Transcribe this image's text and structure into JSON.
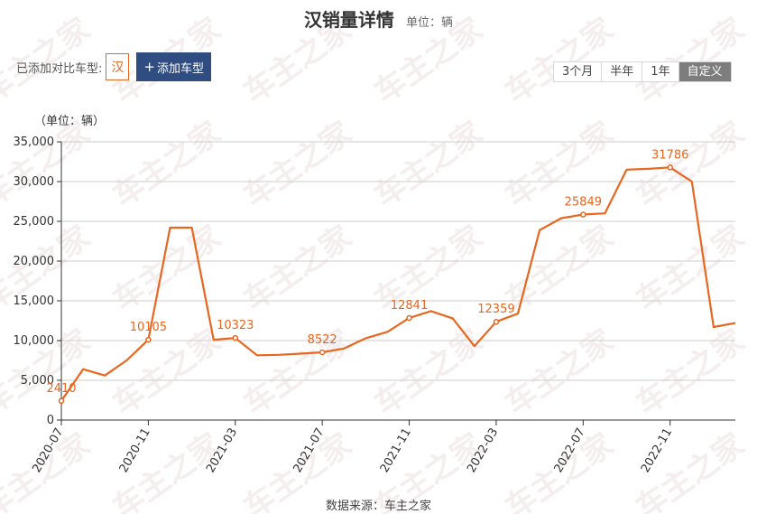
{
  "header": {
    "title": "汉销量详情",
    "unit": "单位：辆"
  },
  "compare": {
    "label": "已添加对比车型:",
    "models": [
      "汉"
    ],
    "add_button": "添加车型"
  },
  "range_tabs": [
    {
      "label": "3个月",
      "active": false
    },
    {
      "label": "半年",
      "active": false
    },
    {
      "label": "1年",
      "active": false
    },
    {
      "label": "自定义",
      "active": true
    }
  ],
  "watermark": "车主之家",
  "chart_data": {
    "type": "line",
    "unit_label": "（单位：辆）",
    "ylim": [
      0,
      35000
    ],
    "yticks": [
      0,
      5000,
      10000,
      15000,
      20000,
      25000,
      30000,
      35000
    ],
    "ytick_labels": [
      "0",
      "5,000",
      "10,000",
      "15,000",
      "20,000",
      "25,000",
      "30,000",
      "35,000"
    ],
    "xtick_labels": [
      "2020-07",
      "2020-11",
      "2021-03",
      "2021-07",
      "2021-11",
      "2022-03",
      "2022-07",
      "2022-11"
    ],
    "x": [
      "2020-07",
      "2020-08",
      "2020-09",
      "2020-10",
      "2020-11",
      "2020-12",
      "2021-01",
      "2021-02",
      "2021-03",
      "2021-04",
      "2021-05",
      "2021-06",
      "2021-07",
      "2021-08",
      "2021-09",
      "2021-10",
      "2021-11",
      "2021-12",
      "2022-01",
      "2022-02",
      "2022-03",
      "2022-04",
      "2022-05",
      "2022-06",
      "2022-07",
      "2022-08",
      "2022-09",
      "2022-10",
      "2022-11",
      "2022-12",
      "2023-01",
      "2023-02"
    ],
    "series": [
      {
        "color": "#e8661f",
        "values": [
          2410,
          6400,
          5600,
          7500,
          10105,
          24200,
          24200,
          10100,
          10323,
          8150,
          8200,
          8350,
          8522,
          9000,
          10300,
          11100,
          12841,
          13700,
          12800,
          9300,
          12359,
          13400,
          23900,
          25400,
          25849,
          26000,
          31500,
          31600,
          31786,
          30000,
          11700,
          12200
        ]
      }
    ],
    "data_labels": [
      {
        "x": "2020-07",
        "text": "2410"
      },
      {
        "x": "2020-11",
        "text": "10105"
      },
      {
        "x": "2021-03",
        "text": "10323"
      },
      {
        "x": "2021-07",
        "text": "8522"
      },
      {
        "x": "2021-11",
        "text": "12841"
      },
      {
        "x": "2022-03",
        "text": "12359"
      },
      {
        "x": "2022-07",
        "text": "25849"
      },
      {
        "x": "2022-11",
        "text": "31786"
      }
    ],
    "grid": true,
    "legend": "none"
  },
  "source": "数据来源：车主之家"
}
